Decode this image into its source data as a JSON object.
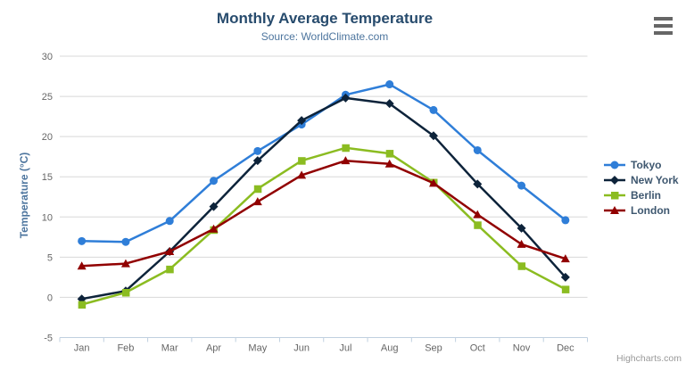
{
  "chart": {
    "title": "Monthly Average Temperature",
    "subtitle": "Source: WorldClimate.com",
    "y_axis_title": "Temperature (°C)",
    "credit": "Highcharts.com"
  },
  "chart_data": {
    "type": "line",
    "title": "Monthly Average Temperature",
    "subtitle": "Source: WorldClimate.com",
    "xlabel": "",
    "ylabel": "Temperature (°C)",
    "categories": [
      "Jan",
      "Feb",
      "Mar",
      "Apr",
      "May",
      "Jun",
      "Jul",
      "Aug",
      "Sep",
      "Oct",
      "Nov",
      "Dec"
    ],
    "series": [
      {
        "name": "Tokyo",
        "color": "#2f7ed8",
        "marker": "circle",
        "values": [
          7.0,
          6.9,
          9.5,
          14.5,
          18.2,
          21.5,
          25.2,
          26.5,
          23.3,
          18.3,
          13.9,
          9.6
        ]
      },
      {
        "name": "New York",
        "color": "#0d233a",
        "marker": "diamond",
        "values": [
          -0.2,
          0.8,
          5.7,
          11.3,
          17.0,
          22.0,
          24.8,
          24.1,
          20.1,
          14.1,
          8.6,
          2.5
        ]
      },
      {
        "name": "Berlin",
        "color": "#8bbc21",
        "marker": "square",
        "values": [
          -0.9,
          0.6,
          3.5,
          8.4,
          13.5,
          17.0,
          18.6,
          17.9,
          14.3,
          9.0,
          3.9,
          1.0
        ]
      },
      {
        "name": "London",
        "color": "#910000",
        "marker": "triangle",
        "values": [
          3.9,
          4.2,
          5.7,
          8.5,
          11.9,
          15.2,
          17.0,
          16.6,
          14.2,
          10.3,
          6.6,
          4.8
        ]
      }
    ],
    "ylim": [
      -5,
      30
    ],
    "y_ticks": [
      -5,
      0,
      5,
      10,
      15,
      20,
      25,
      30
    ],
    "grid": true,
    "legend_position": "right",
    "grid_color": "#D8D8D8",
    "axis_line_color": "#C0D0E0",
    "axis_label_color": "#666666"
  }
}
